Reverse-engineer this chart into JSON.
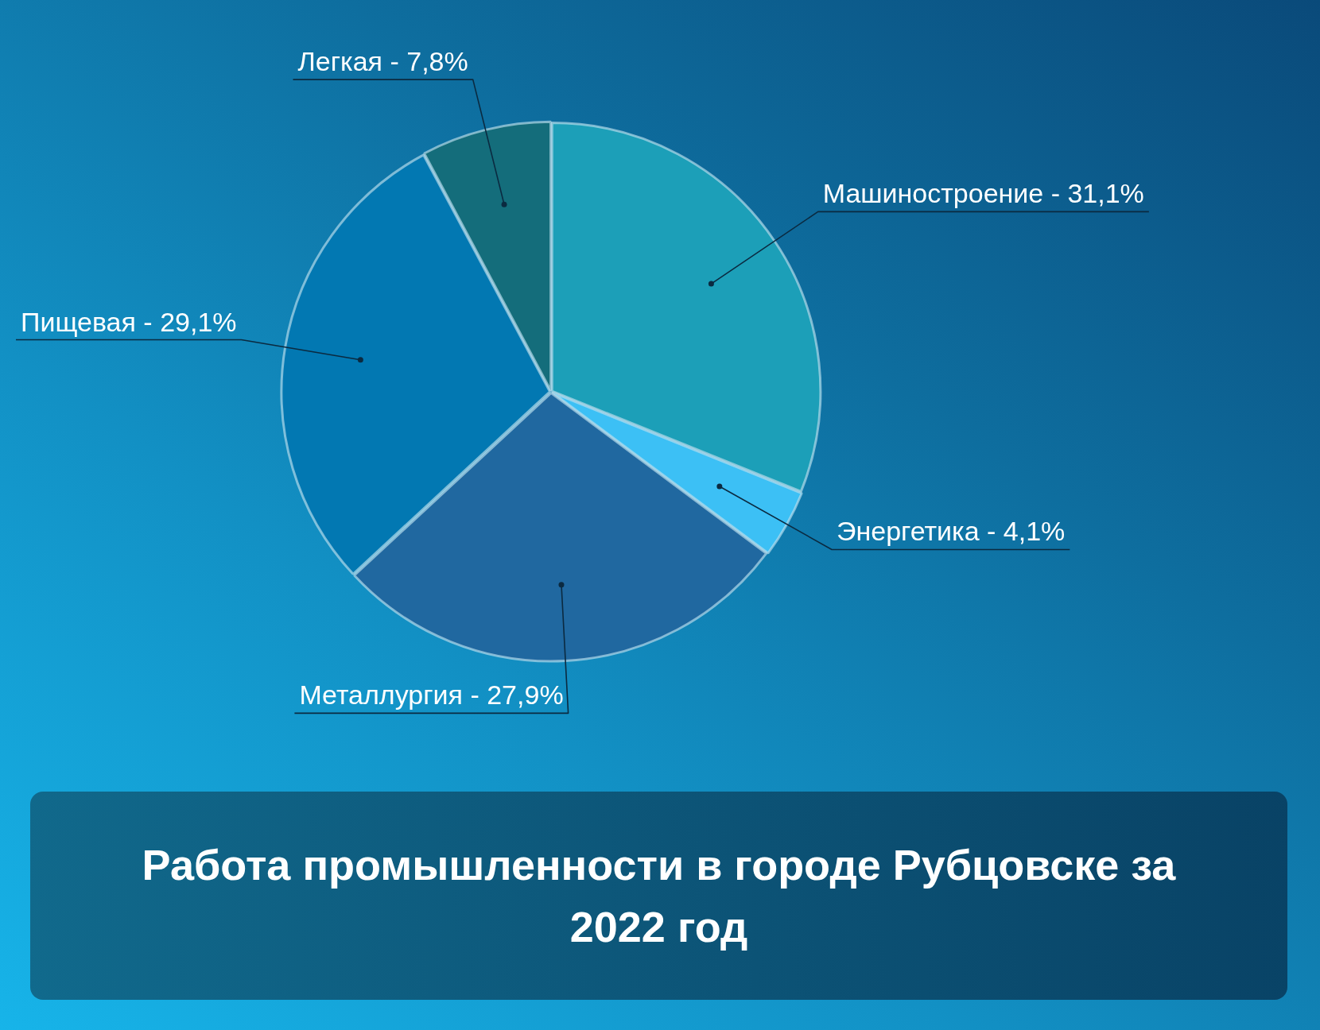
{
  "chart_data": {
    "type": "pie",
    "title": "Работа промышленности в городе Рубцовске за 2022 год",
    "categories": [
      "Машиностроение",
      "Энергетика",
      "Металлургия",
      "Пищевая",
      "Легкая"
    ],
    "values": [
      31.1,
      4.1,
      27.9,
      29.1,
      7.8
    ],
    "colors": [
      "#1c9fb8",
      "#3cc0f5",
      "#2068a0",
      "#0278b2",
      "#146d7b"
    ],
    "value_labels": [
      "31,1%",
      "4,1%",
      "27,9%",
      "29,1%",
      "7,8%"
    ]
  }
}
